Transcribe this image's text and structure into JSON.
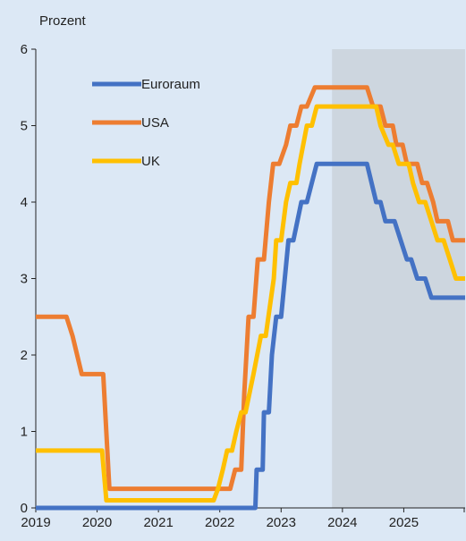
{
  "chart_data": {
    "type": "line",
    "ylabel": "Prozent",
    "xlabel": "",
    "ylim": [
      0,
      6
    ],
    "yticks": [
      0,
      1,
      2,
      3,
      4,
      5,
      6
    ],
    "xlim": [
      2019.0,
      2026.0
    ],
    "xticks": [
      "2019",
      "2020",
      "2021",
      "2022",
      "2023",
      "2024",
      "2025"
    ],
    "shaded_region": {
      "from": 2023.83,
      "to": 2026.0,
      "color": "#cdd6df"
    },
    "legend_position": "top-left",
    "series": [
      {
        "name": "Euroraum",
        "color": "#4472c4",
        "points": [
          [
            2019.0,
            0
          ],
          [
            2022.58,
            0
          ],
          [
            2022.6,
            0.5
          ],
          [
            2022.7,
            0.5
          ],
          [
            2022.72,
            1.25
          ],
          [
            2022.8,
            1.25
          ],
          [
            2022.85,
            2.0
          ],
          [
            2022.92,
            2.5
          ],
          [
            2023.0,
            2.5
          ],
          [
            2023.12,
            3.5
          ],
          [
            2023.2,
            3.5
          ],
          [
            2023.33,
            4.0
          ],
          [
            2023.42,
            4.0
          ],
          [
            2023.58,
            4.5
          ],
          [
            2024.4,
            4.5
          ],
          [
            2024.55,
            4.0
          ],
          [
            2024.62,
            4.0
          ],
          [
            2024.7,
            3.75
          ],
          [
            2024.85,
            3.75
          ],
          [
            2024.95,
            3.5
          ],
          [
            2025.05,
            3.25
          ],
          [
            2025.12,
            3.25
          ],
          [
            2025.22,
            3.0
          ],
          [
            2025.35,
            3.0
          ],
          [
            2025.45,
            2.75
          ],
          [
            2026.0,
            2.75
          ]
        ]
      },
      {
        "name": "USA",
        "color": "#ed7d31",
        "points": [
          [
            2019.0,
            2.5
          ],
          [
            2019.5,
            2.5
          ],
          [
            2019.6,
            2.25
          ],
          [
            2019.75,
            1.75
          ],
          [
            2020.1,
            1.75
          ],
          [
            2020.2,
            0.25
          ],
          [
            2022.17,
            0.25
          ],
          [
            2022.25,
            0.5
          ],
          [
            2022.35,
            0.5
          ],
          [
            2022.4,
            1.5
          ],
          [
            2022.47,
            2.5
          ],
          [
            2022.55,
            2.5
          ],
          [
            2022.62,
            3.25
          ],
          [
            2022.72,
            3.25
          ],
          [
            2022.8,
            4.0
          ],
          [
            2022.87,
            4.5
          ],
          [
            2022.97,
            4.5
          ],
          [
            2023.08,
            4.75
          ],
          [
            2023.15,
            5.0
          ],
          [
            2023.25,
            5.0
          ],
          [
            2023.33,
            5.25
          ],
          [
            2023.42,
            5.25
          ],
          [
            2023.55,
            5.5
          ],
          [
            2024.4,
            5.5
          ],
          [
            2024.5,
            5.25
          ],
          [
            2024.62,
            5.25
          ],
          [
            2024.7,
            5.0
          ],
          [
            2024.82,
            5.0
          ],
          [
            2024.88,
            4.75
          ],
          [
            2024.98,
            4.75
          ],
          [
            2025.05,
            4.5
          ],
          [
            2025.22,
            4.5
          ],
          [
            2025.3,
            4.25
          ],
          [
            2025.38,
            4.25
          ],
          [
            2025.48,
            4.0
          ],
          [
            2025.55,
            3.75
          ],
          [
            2025.72,
            3.75
          ],
          [
            2025.8,
            3.5
          ],
          [
            2026.0,
            3.5
          ]
        ]
      },
      {
        "name": "UK",
        "color": "#ffc000",
        "points": [
          [
            2019.0,
            0.75
          ],
          [
            2020.08,
            0.75
          ],
          [
            2020.15,
            0.1
          ],
          [
            2021.9,
            0.1
          ],
          [
            2021.97,
            0.25
          ],
          [
            2022.05,
            0.5
          ],
          [
            2022.12,
            0.75
          ],
          [
            2022.2,
            0.75
          ],
          [
            2022.27,
            1.0
          ],
          [
            2022.35,
            1.25
          ],
          [
            2022.42,
            1.25
          ],
          [
            2022.55,
            1.75
          ],
          [
            2022.67,
            2.25
          ],
          [
            2022.75,
            2.25
          ],
          [
            2022.88,
            3.0
          ],
          [
            2022.92,
            3.5
          ],
          [
            2023.0,
            3.5
          ],
          [
            2023.08,
            4.0
          ],
          [
            2023.15,
            4.25
          ],
          [
            2023.25,
            4.25
          ],
          [
            2023.3,
            4.5
          ],
          [
            2023.42,
            5.0
          ],
          [
            2023.5,
            5.0
          ],
          [
            2023.58,
            5.25
          ],
          [
            2024.55,
            5.25
          ],
          [
            2024.62,
            5.0
          ],
          [
            2024.75,
            4.75
          ],
          [
            2024.82,
            4.75
          ],
          [
            2024.92,
            4.5
          ],
          [
            2025.08,
            4.5
          ],
          [
            2025.15,
            4.25
          ],
          [
            2025.25,
            4.0
          ],
          [
            2025.35,
            4.0
          ],
          [
            2025.45,
            3.75
          ],
          [
            2025.55,
            3.5
          ],
          [
            2025.65,
            3.5
          ],
          [
            2025.75,
            3.25
          ],
          [
            2025.85,
            3.0
          ],
          [
            2026.0,
            3.0
          ]
        ]
      }
    ]
  }
}
